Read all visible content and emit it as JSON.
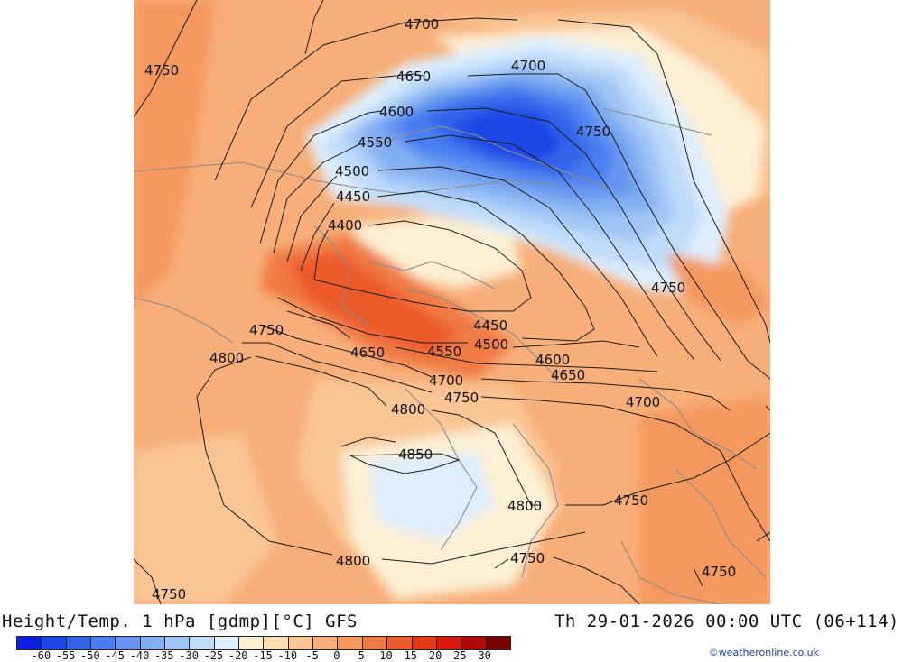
{
  "title": "Height/Temp. 1 hPa [gdmp][°C] GFS",
  "datetime": "Th 29-01-2026 00:00 UTC (06+114)",
  "credit": "©weatheronline.co.uk",
  "legend": {
    "tick_labels": [
      "-60",
      "-55",
      "-50",
      "-45",
      "-40",
      "-35",
      "-30",
      "-25",
      "-20",
      "-15",
      "-10",
      "-5",
      "0",
      "5",
      "10",
      "15",
      "20",
      "25",
      "30"
    ],
    "colors": [
      "#0a1fe0",
      "#1e46e6",
      "#3264ea",
      "#4a7ef0",
      "#6494f0",
      "#82aef2",
      "#a0c6f6",
      "#c0dcfa",
      "#deeefc",
      "#fdf0d4",
      "#fcdcb2",
      "#f9c594",
      "#f7ae78",
      "#f4985e",
      "#f07a44",
      "#ec5a2a",
      "#e63a16",
      "#d81a0a",
      "#b00a04",
      "#7a0000"
    ]
  },
  "contour_labels": [
    {
      "text": "4700"
    },
    {
      "text": "4700"
    },
    {
      "text": "4750"
    },
    {
      "text": "4650"
    },
    {
      "text": "4600"
    },
    {
      "text": "4550"
    },
    {
      "text": "4500"
    },
    {
      "text": "4450"
    },
    {
      "text": "4400"
    },
    {
      "text": "4750"
    },
    {
      "text": "4750"
    },
    {
      "text": "4750"
    },
    {
      "text": "4650"
    },
    {
      "text": "4800"
    },
    {
      "text": "4450"
    },
    {
      "text": "4550"
    },
    {
      "text": "4500"
    },
    {
      "text": "4600"
    },
    {
      "text": "4650"
    },
    {
      "text": "4700"
    },
    {
      "text": "4750"
    },
    {
      "text": "4700"
    },
    {
      "text": "4800"
    },
    {
      "text": "4850"
    },
    {
      "text": "4800"
    },
    {
      "text": "4750"
    },
    {
      "text": "4800"
    },
    {
      "text": "4750"
    },
    {
      "text": "4750"
    },
    {
      "text": "4750"
    }
  ]
}
